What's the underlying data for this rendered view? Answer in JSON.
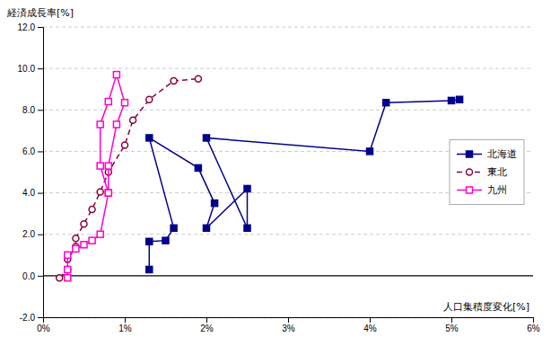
{
  "chart_data": {
    "type": "line",
    "x_label": "人口集積度変化[%]",
    "y_label": "経済成長率[%]",
    "xlim": [
      0,
      0.06
    ],
    "ylim": [
      -2.0,
      12.0
    ],
    "xticks": [
      {
        "value": 0,
        "label": "0%"
      },
      {
        "value": 0.01,
        "label": "1%"
      },
      {
        "value": 0.02,
        "label": "2%"
      },
      {
        "value": 0.03,
        "label": "3%"
      },
      {
        "value": 0.04,
        "label": "4%"
      },
      {
        "value": 0.05,
        "label": "5%"
      },
      {
        "value": 0.06,
        "label": "6%"
      }
    ],
    "yticks": [
      {
        "value": -2.0,
        "label": "-2.0"
      },
      {
        "value": 0.0,
        "label": "0.0"
      },
      {
        "value": 2.0,
        "label": "2.0"
      },
      {
        "value": 4.0,
        "label": "4.0"
      },
      {
        "value": 6.0,
        "label": "6.0"
      },
      {
        "value": 8.0,
        "label": "8.0"
      },
      {
        "value": 10.0,
        "label": "10.0"
      },
      {
        "value": 12.0,
        "label": "12.0"
      }
    ],
    "grid": true,
    "legend": "center right",
    "series": [
      {
        "name": "北海道",
        "color": "#00008B",
        "marker": "square",
        "line_style": "solid",
        "x": [
          0.013,
          0.013,
          0.015,
          0.016,
          0.013,
          0.019,
          0.021,
          0.02,
          0.025,
          0.025,
          0.02,
          0.04,
          0.042,
          0.05,
          0.051
        ],
        "values": [
          0.3,
          1.65,
          1.7,
          2.3,
          6.65,
          5.2,
          3.5,
          2.3,
          4.2,
          2.3,
          6.65,
          6.0,
          8.35,
          8.45,
          8.5
        ]
      },
      {
        "name": "東北",
        "color": "#8B003C",
        "marker": "circle-open",
        "line_style": "dashed",
        "x": [
          0.002,
          0.003,
          0.003,
          0.004,
          0.004,
          0.005,
          0.006,
          0.007,
          0.008,
          0.01,
          0.011,
          0.013,
          0.016,
          0.019
        ],
        "values": [
          -0.1,
          0.3,
          0.8,
          1.4,
          1.8,
          2.5,
          3.2,
          4.05,
          5.0,
          6.3,
          7.5,
          8.5,
          9.4,
          9.5
        ]
      },
      {
        "name": "九州",
        "color": "#FF00CC",
        "marker": "square-open",
        "line_style": "solid",
        "x": [
          0.003,
          0.003,
          0.003,
          0.004,
          0.005,
          0.006,
          0.007,
          0.008,
          0.008,
          0.009,
          0.01,
          0.009,
          0.008,
          0.007,
          0.007,
          0.008
        ],
        "values": [
          -0.1,
          0.3,
          1.0,
          1.3,
          1.5,
          1.7,
          2.0,
          4.0,
          5.3,
          7.3,
          8.35,
          9.7,
          8.4,
          7.3,
          5.3,
          4.0
        ]
      }
    ]
  }
}
